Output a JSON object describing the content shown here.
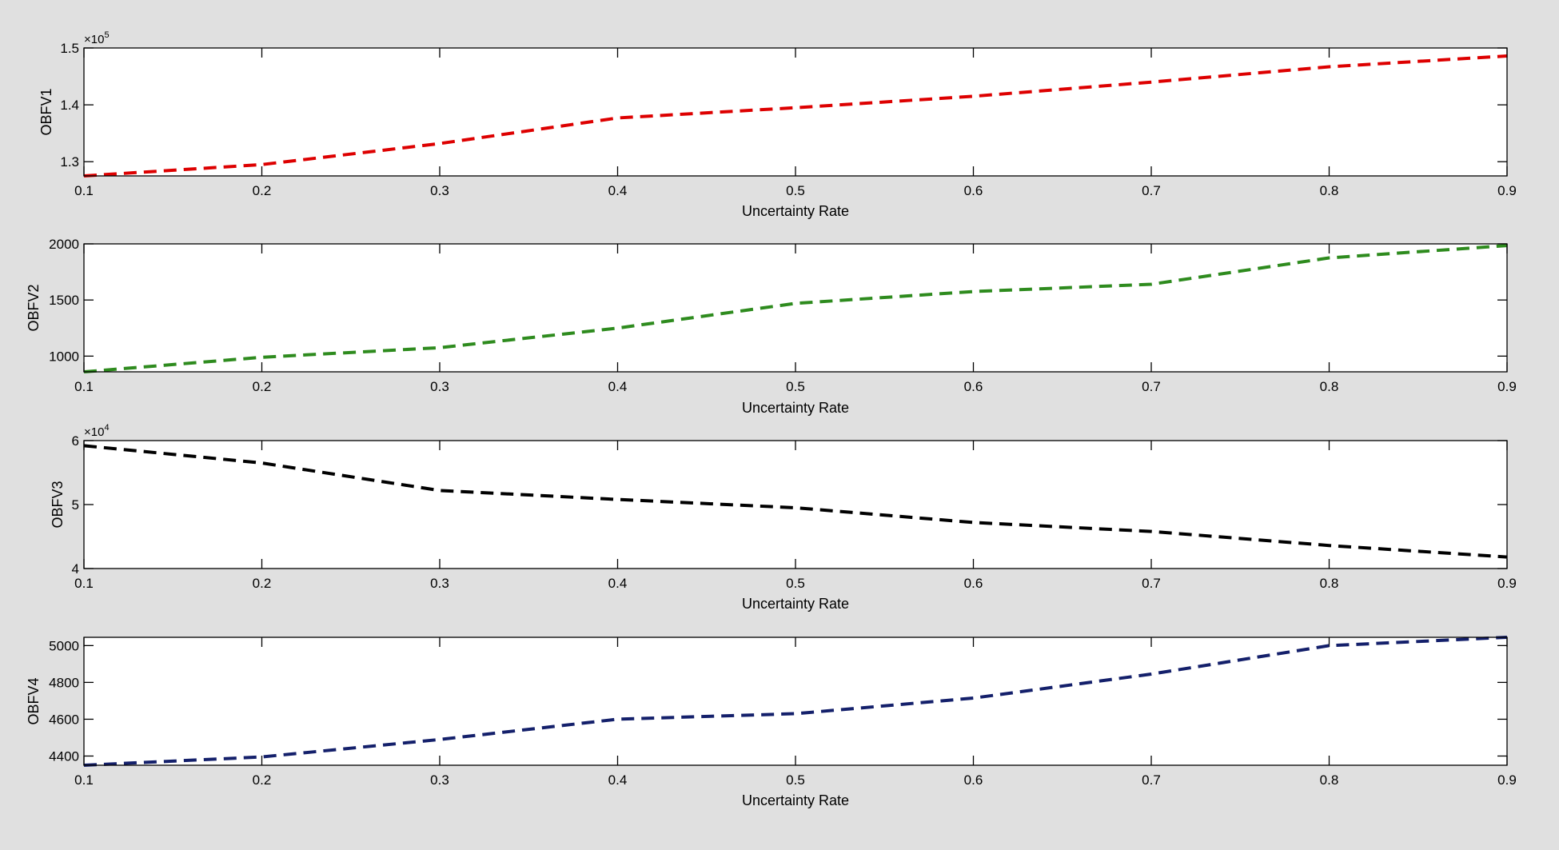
{
  "chart_data": [
    {
      "type": "line",
      "xlabel": "Uncertainty Rate",
      "ylabel": "OBFV1",
      "x": [
        0.1,
        0.2,
        0.3,
        0.4,
        0.5,
        0.6,
        0.7,
        0.8,
        0.9
      ],
      "x_ticks": [
        "0.1",
        "0.2",
        "0.3",
        "0.4",
        "0.5",
        "0.6",
        "0.7",
        "0.8",
        "0.9"
      ],
      "xlim": [
        0.1,
        0.9
      ],
      "y_exponent": "5",
      "y_exponent_base": "×10",
      "ylim": [
        1.275,
        1.5
      ],
      "y_ticks": [
        1.3,
        1.4,
        1.5
      ],
      "y_tick_labels": [
        "1.3",
        "1.4",
        "1.5"
      ],
      "series": [
        {
          "color": "#dd0000",
          "values": [
            1.275,
            1.295,
            1.332,
            1.377,
            1.395,
            1.415,
            1.44,
            1.467,
            1.486
          ]
        }
      ],
      "grid": false
    },
    {
      "type": "line",
      "xlabel": "Uncertainty Rate",
      "ylabel": "OBFV2",
      "x": [
        0.1,
        0.2,
        0.3,
        0.4,
        0.5,
        0.6,
        0.7,
        0.8,
        0.9
      ],
      "x_ticks": [
        "0.1",
        "0.2",
        "0.3",
        "0.4",
        "0.5",
        "0.6",
        "0.7",
        "0.8",
        "0.9"
      ],
      "xlim": [
        0.1,
        0.9
      ],
      "ylim": [
        860,
        2000
      ],
      "y_ticks": [
        1000,
        1500,
        2000
      ],
      "y_tick_labels": [
        "1000",
        "1500",
        "2000"
      ],
      "series": [
        {
          "color": "#2e8b1e",
          "values": [
            860,
            990,
            1075,
            1250,
            1470,
            1575,
            1640,
            1875,
            1985
          ]
        }
      ],
      "grid": false
    },
    {
      "type": "line",
      "xlabel": "Uncertainty Rate",
      "ylabel": "OBFV3",
      "x": [
        0.1,
        0.2,
        0.3,
        0.4,
        0.5,
        0.6,
        0.7,
        0.8,
        0.9
      ],
      "x_ticks": [
        "0.1",
        "0.2",
        "0.3",
        "0.4",
        "0.5",
        "0.6",
        "0.7",
        "0.8",
        "0.9"
      ],
      "xlim": [
        0.1,
        0.9
      ],
      "y_exponent": "4",
      "y_exponent_base": "×10",
      "ylim": [
        4,
        6
      ],
      "y_ticks": [
        4,
        5,
        6
      ],
      "y_tick_labels": [
        "4",
        "5",
        "6"
      ],
      "series": [
        {
          "color": "#000000",
          "values": [
            5.92,
            5.65,
            5.22,
            5.08,
            4.95,
            4.72,
            4.58,
            4.36,
            4.18
          ]
        }
      ],
      "grid": false
    },
    {
      "type": "line",
      "xlabel": "Uncertainty Rate",
      "ylabel": "OBFV4",
      "x": [
        0.1,
        0.2,
        0.3,
        0.4,
        0.5,
        0.6,
        0.7,
        0.8,
        0.9
      ],
      "x_ticks": [
        "0.1",
        "0.2",
        "0.3",
        "0.4",
        "0.5",
        "0.6",
        "0.7",
        "0.8",
        "0.9"
      ],
      "xlim": [
        0.1,
        0.9
      ],
      "ylim": [
        4350,
        5045
      ],
      "y_ticks": [
        4400,
        4600,
        4800,
        5000
      ],
      "y_tick_labels": [
        "4400",
        "4600",
        "4800",
        "5000"
      ],
      "series": [
        {
          "color": "#14206b",
          "values": [
            4350,
            4395,
            4490,
            4600,
            4630,
            4715,
            4845,
            5000,
            5045
          ]
        }
      ],
      "grid": false
    }
  ]
}
